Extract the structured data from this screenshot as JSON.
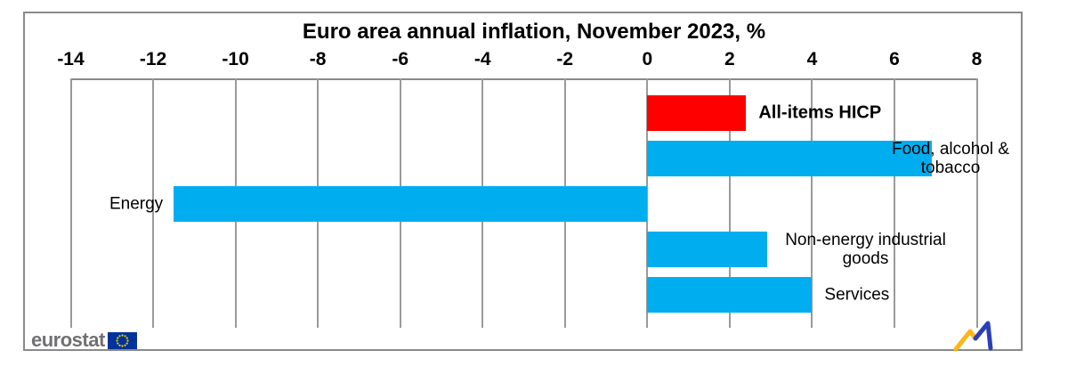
{
  "chart_data": {
    "type": "bar",
    "orientation": "horizontal",
    "title": "Euro area annual inflation, November 2023, %",
    "xlim": [
      -14,
      8
    ],
    "xticks": [
      -14,
      -12,
      -10,
      -8,
      -6,
      -4,
      -2,
      0,
      2,
      4,
      6,
      8
    ],
    "grid": true,
    "axis_position": "top",
    "categories": [
      "All-items HICP",
      "Food, alcohol & tobacco",
      "Energy",
      "Non-energy industrial goods",
      "Services"
    ],
    "bars": [
      {
        "label_lines": [
          "All-items HICP"
        ],
        "value": 2.4,
        "color": "#ff0000",
        "bold_label": true
      },
      {
        "label_lines": [
          "Food, alcohol &",
          "tobacco"
        ],
        "value": 6.9,
        "color": "#00aeef",
        "bold_label": false
      },
      {
        "label_lines": [
          "Energy"
        ],
        "value": -11.5,
        "color": "#00aeef",
        "bold_label": false
      },
      {
        "label_lines": [
          "Non-energy industrial",
          "goods"
        ],
        "value": 2.9,
        "color": "#00aeef",
        "bold_label": false
      },
      {
        "label_lines": [
          "Services"
        ],
        "value": 4.0,
        "color": "#00aeef",
        "bold_label": false
      }
    ]
  },
  "colors": {
    "bar_red": "#ff0000",
    "bar_blue": "#00aeef",
    "grid_gray": "#9a9a9a",
    "border_gray": "#8a8a8a",
    "eurostat_gray": "#717174",
    "eu_flag_blue": "#003399",
    "eu_star_yellow": "#ffcc00",
    "spark_yellow": "#fdb515",
    "spark_blue": "#2a3fb8"
  },
  "branding": {
    "eurostat_label": "eurostat",
    "flag_icon": "eu-flag-icon",
    "spark_icon": "line-chart-icon"
  }
}
